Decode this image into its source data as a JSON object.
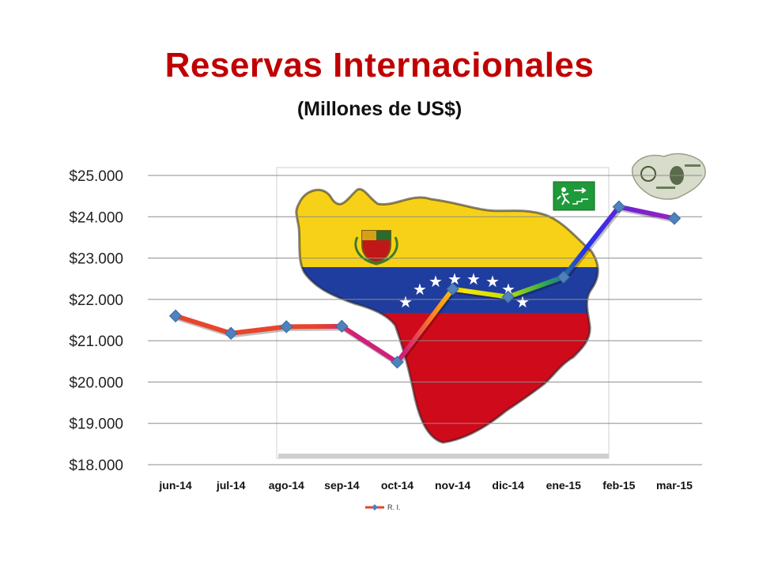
{
  "title": "Reservas Internacionales",
  "subtitle": "(Millones de US$)",
  "colors": {
    "title": "#c00000",
    "marker": "#4f81bd",
    "flag_yellow": "#f7d117",
    "flag_blue": "#1f3d9e",
    "flag_red": "#cf0a1a",
    "gridline": "#8c8c8c"
  },
  "icons": [
    "venezuela-map-flag-image",
    "coat-of-arms-icon",
    "emergency-exit-sign-icon",
    "dollar-bill-map-image"
  ],
  "chart_data": {
    "type": "line",
    "categories": [
      "jun-14",
      "jul-14",
      "ago-14",
      "sep-14",
      "oct-14",
      "nov-14",
      "dic-14",
      "ene-15",
      "feb-15",
      "mar-15"
    ],
    "y_tick_labels": [
      "$25.000",
      "$24.000",
      "$23.000",
      "$22.000",
      "$21.000",
      "$20.000",
      "$19.000",
      "$18.000"
    ],
    "ylim": [
      18000,
      25000
    ],
    "grid": true,
    "legend_position": "bottom",
    "series": [
      {
        "name": "R. I.",
        "values": [
          21600,
          21180,
          21340,
          21350,
          20480,
          22250,
          22060,
          22540,
          24240,
          23960
        ]
      }
    ]
  }
}
